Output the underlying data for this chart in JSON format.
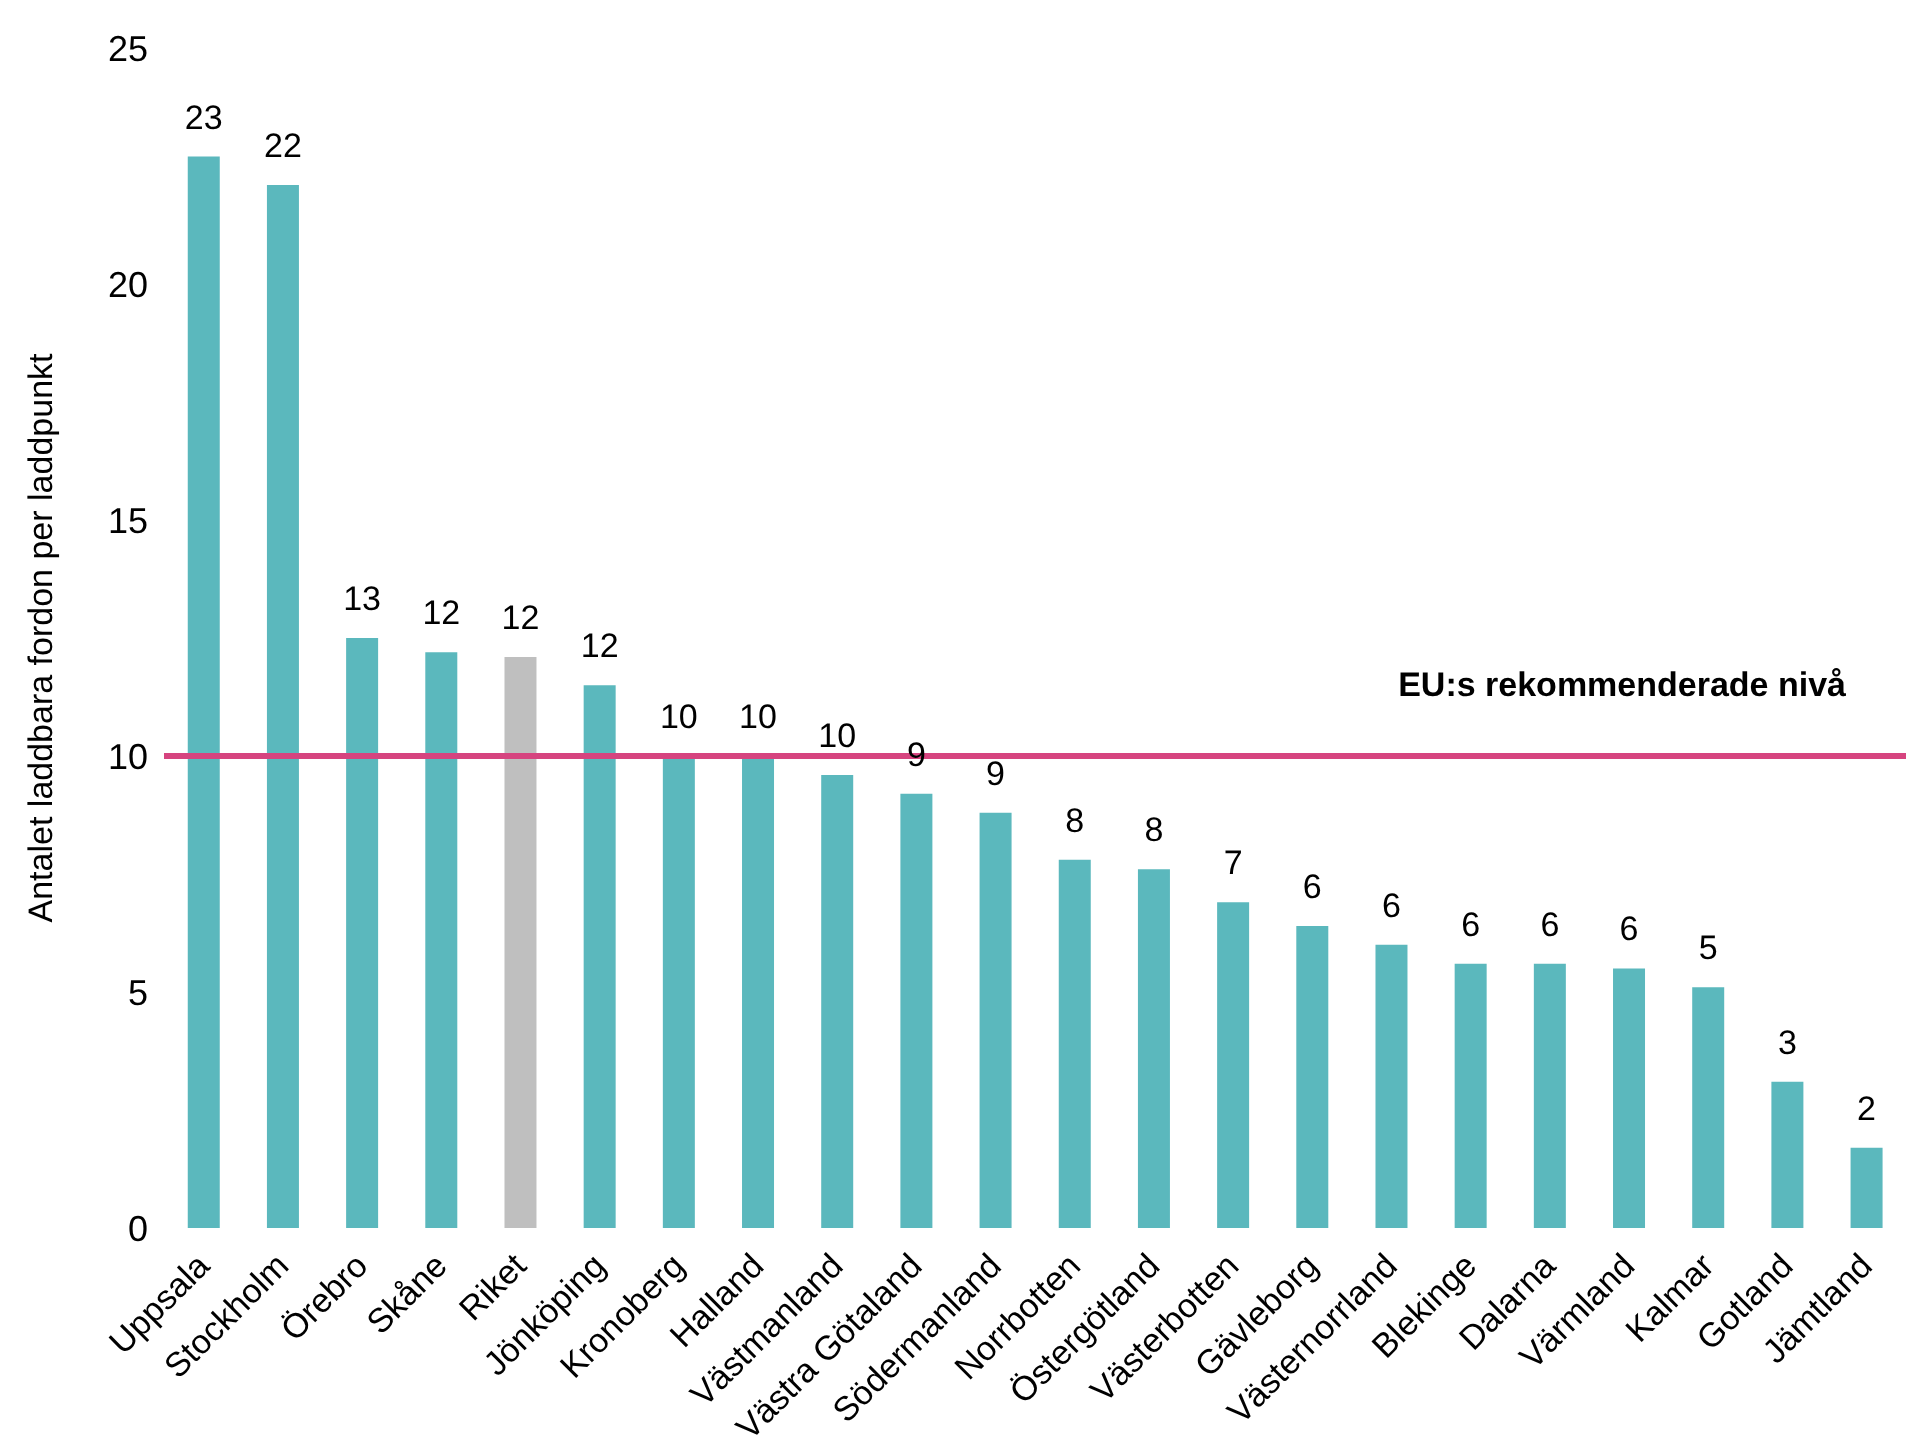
{
  "chart_data": {
    "type": "bar",
    "ylabel": "Antalet laddbara fordon per laddpunkt",
    "categories": [
      "Uppsala",
      "Stockholm",
      "Örebro",
      "Skåne",
      "Riket",
      "Jönköping",
      "Kronoberg",
      "Halland",
      "Västmanland",
      "Västra Götaland",
      "Södermanland",
      "Norrbotten",
      "Östergötland",
      "Västerbotten",
      "Gävleborg",
      "Västernorrland",
      "Blekinge",
      "Dalarna",
      "Värmland",
      "Kalmar",
      "Gotland",
      "Jämtland"
    ],
    "values": [
      22.7,
      22.1,
      12.5,
      12.2,
      12.1,
      11.5,
      10.0,
      10.0,
      9.6,
      9.2,
      8.8,
      7.8,
      7.6,
      6.9,
      6.4,
      6.0,
      5.6,
      5.6,
      5.5,
      5.1,
      3.1,
      1.7
    ],
    "colors": [
      "#5bb8bd",
      "#5bb8bd",
      "#5bb8bd",
      "#5bb8bd",
      "#bfbfbf",
      "#5bb8bd",
      "#5bb8bd",
      "#5bb8bd",
      "#5bb8bd",
      "#5bb8bd",
      "#5bb8bd",
      "#5bb8bd",
      "#5bb8bd",
      "#5bb8bd",
      "#5bb8bd",
      "#5bb8bd",
      "#5bb8bd",
      "#5bb8bd",
      "#5bb8bd",
      "#5bb8bd",
      "#5bb8bd",
      "#5bb8bd"
    ],
    "value_labels": [
      "23",
      "22",
      "13",
      "12",
      "12",
      "12",
      "10",
      "10",
      "10",
      "9",
      "9",
      "8",
      "8",
      "7",
      "6",
      "6",
      "6",
      "6",
      "6",
      "5",
      "3",
      "2"
    ],
    "ylim": [
      0,
      25
    ],
    "yticks": [
      0,
      5,
      10,
      15,
      20,
      25
    ],
    "grid": false,
    "ref_lines": [
      {
        "axis": "y",
        "value": 10,
        "label": "EU:s rekommenderade nivå",
        "color": "#d6447f"
      }
    ]
  }
}
